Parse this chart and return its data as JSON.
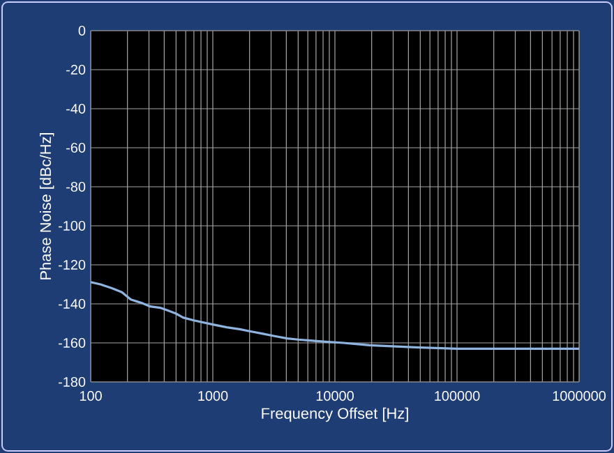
{
  "chart_data": {
    "type": "line",
    "xlabel": "Frequency Offset [Hz]",
    "ylabel": "Phase Noise [dBc/Hz]",
    "log": "x",
    "grid": true,
    "color": "#8fb4e0",
    "x": [
      100,
      120,
      149,
      180,
      213,
      260,
      305,
      370,
      436,
      500,
      570,
      700,
      1000,
      1300,
      1660,
      2000,
      2570,
      3200,
      4070,
      5000,
      6300,
      8000,
      11750,
      19200,
      45700,
      100000,
      257000,
      500000,
      1000000
    ],
    "values": [
      -128.9,
      -130,
      -132,
      -134,
      -137.8,
      -139.5,
      -141.3,
      -142,
      -143.6,
      -145,
      -147,
      -148.5,
      -150.6,
      -152,
      -153,
      -154,
      -155.3,
      -156.5,
      -157.7,
      -158.3,
      -158.8,
      -159.3,
      -160,
      -161.2,
      -162.3,
      -163,
      -163,
      -163,
      -163
    ],
    "xlim": [
      100,
      1000000
    ],
    "ylim": [
      -180,
      0
    ],
    "xticks": [
      100,
      1000,
      10000,
      100000,
      1000000
    ],
    "yticks": [
      -180,
      -160,
      -140,
      -120,
      -100,
      -80,
      -60,
      -40,
      -20,
      0
    ]
  }
}
